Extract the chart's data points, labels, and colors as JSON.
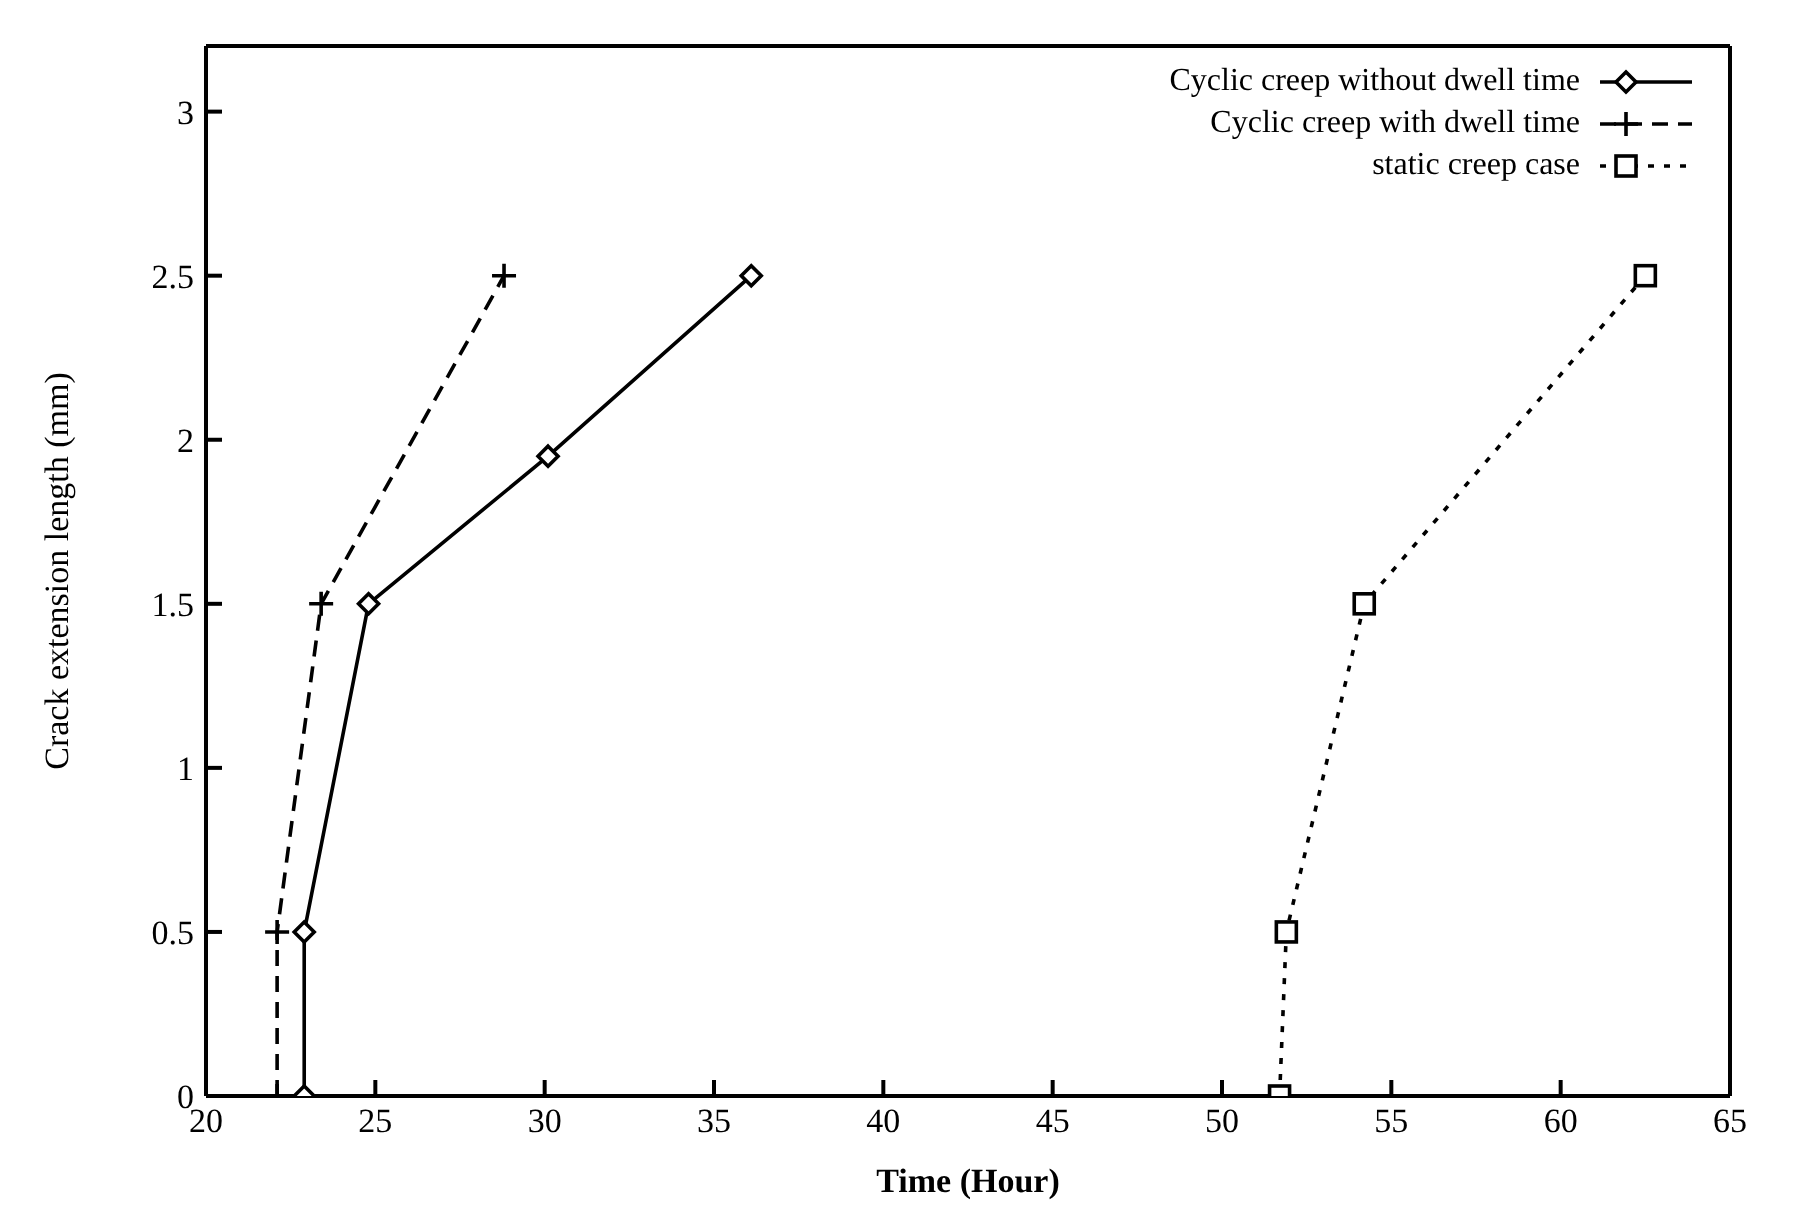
{
  "chart_data": {
    "type": "line",
    "xlabel": "Time (Hour)",
    "ylabel": "Crack extension length (mm)",
    "xlim": [
      20,
      65
    ],
    "xticks": [
      20,
      25,
      30,
      35,
      40,
      45,
      50,
      55,
      60,
      65
    ],
    "ylim": [
      0,
      3.2
    ],
    "yticks": [
      0,
      0.5,
      1,
      1.5,
      2,
      2.5,
      3
    ],
    "grid": false,
    "legend": "top right",
    "series": [
      {
        "name": "Cyclic creep without dwell time",
        "color": "#000000",
        "marker": "diamond",
        "line_style": "solid",
        "x": [
          22.9,
          22.9,
          24.8,
          30.1,
          36.1
        ],
        "values": [
          0,
          0.5,
          1.5,
          1.95,
          2.5
        ]
      },
      {
        "name": "Cyclic creep with dwell time",
        "color": "#000000",
        "marker": "cross",
        "line_style": "dashed",
        "x": [
          22.1,
          22.1,
          23.4,
          28.8
        ],
        "values": [
          0,
          0.5,
          1.5,
          2.5
        ]
      },
      {
        "name": "static creep case",
        "color": "#000000",
        "marker": "square",
        "line_style": "dotted",
        "x": [
          51.7,
          51.9,
          54.2,
          62.5
        ],
        "values": [
          0,
          0.5,
          1.5,
          2.5
        ]
      }
    ]
  }
}
